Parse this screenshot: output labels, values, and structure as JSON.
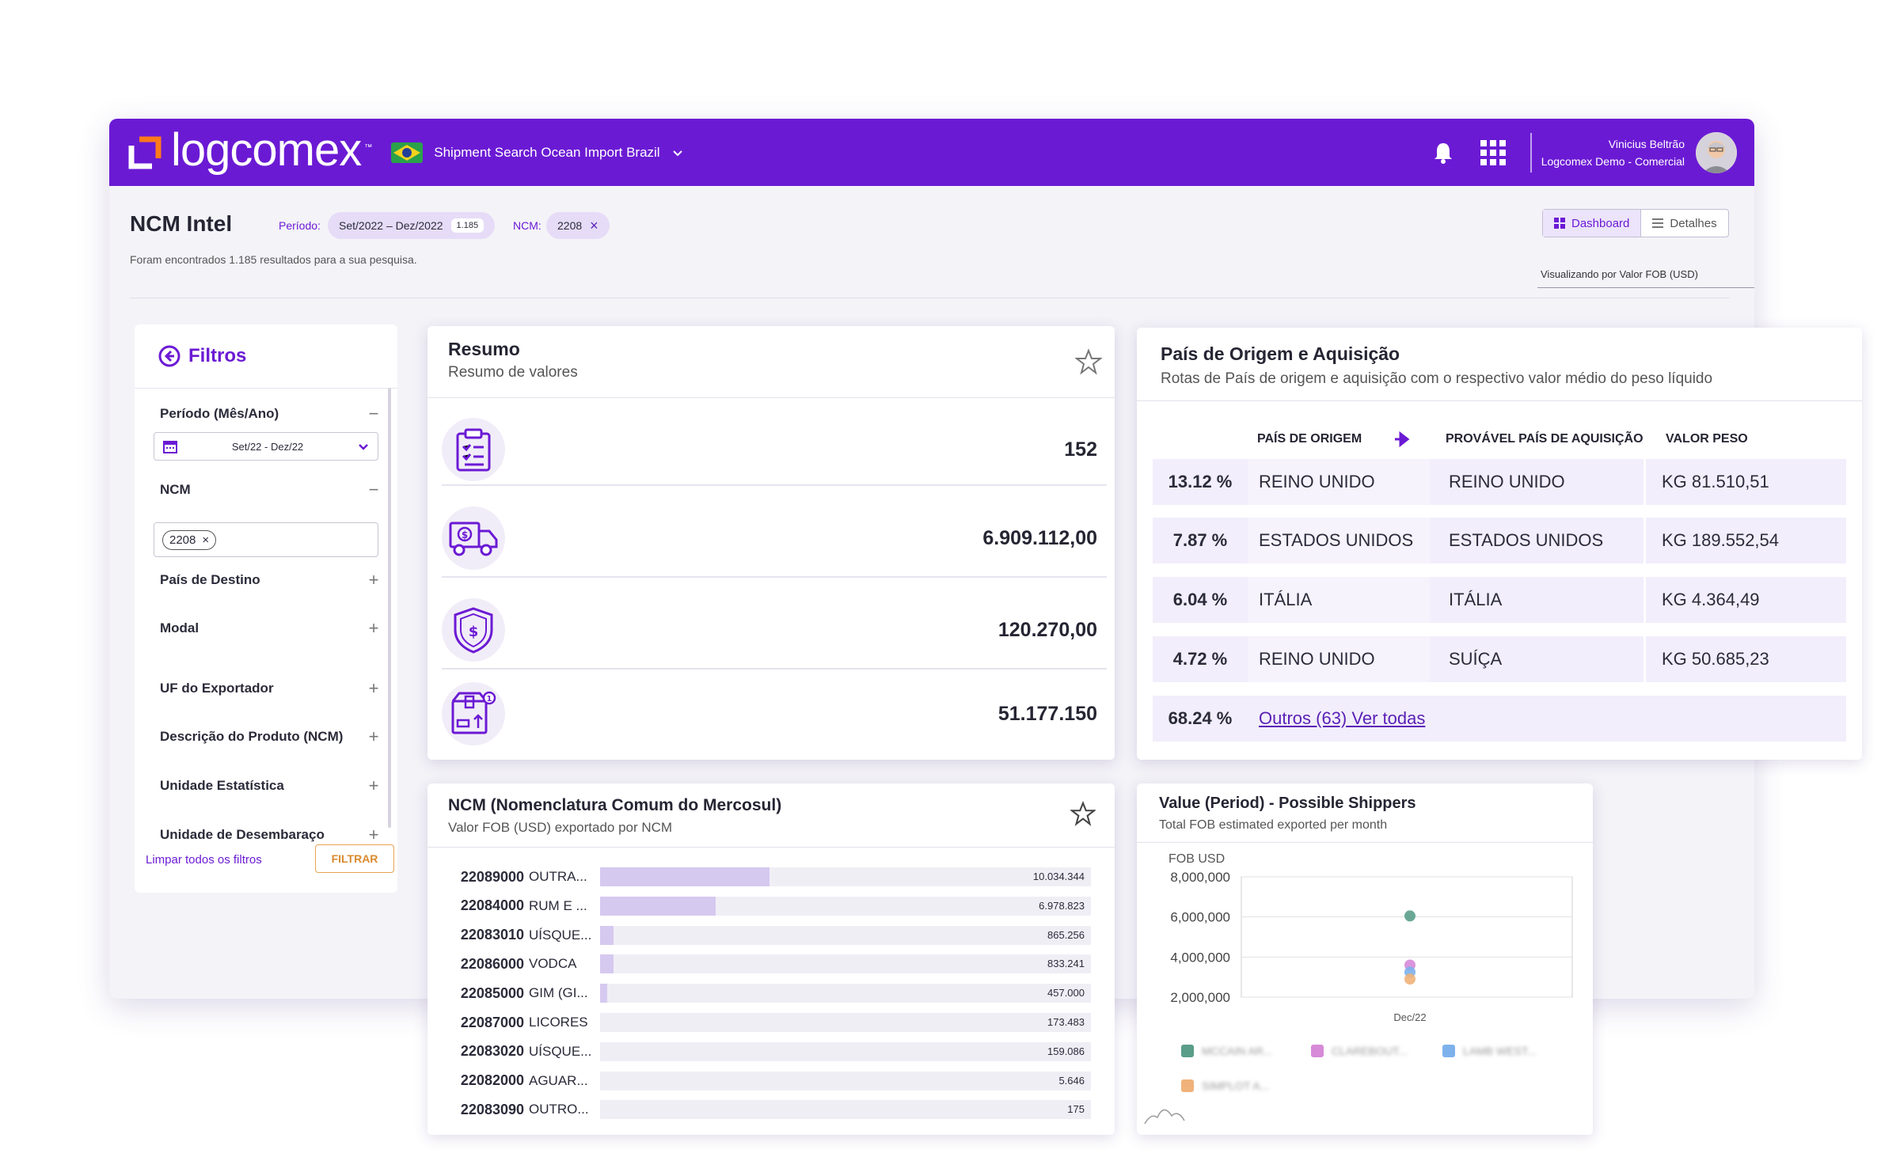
{
  "header": {
    "logo_text": "logcomex",
    "logo_tm": "™",
    "product_name": "Shipment Search Ocean Import Brazil",
    "user_name": "Vinicius Beltrão",
    "user_org": "Logcomex Demo - Comercial"
  },
  "page": {
    "title": "NCM Intel",
    "periodo_label": "Período:",
    "periodo_value": "Set/2022 – Dez/2022",
    "periodo_count": "1.185",
    "ncm_label": "NCM:",
    "ncm_value": "2208",
    "results_text": "Foram encontrados 1.185 resultados para a sua pesquisa.",
    "view_dashboard": "Dashboard",
    "view_detalhes": "Detalhes",
    "visualizando": "Visualizando por Valor FOB (USD)"
  },
  "filters": {
    "title": "Filtros",
    "periodo": "Período (Mês/Ano)",
    "periodo_range": "Set/22 - Dez/22",
    "ncm": "NCM",
    "ncm_tag": "2208",
    "items": [
      "País de Destino",
      "Modal",
      "UF do Exportador",
      "Descrição do Produto (NCM)",
      "Unidade Estatística",
      "Unidade de Desembaraço"
    ],
    "clear": "Limpar todos os filtros",
    "apply": "FILTRAR"
  },
  "resumo": {
    "title": "Resumo",
    "subtitle": "Resumo de valores",
    "rows": [
      {
        "icon": "clipboard-icon",
        "value": "152"
      },
      {
        "icon": "truck-icon",
        "value": "6.909.112,00"
      },
      {
        "icon": "shield-dollar-icon",
        "value": "120.270,00"
      },
      {
        "icon": "box-icon",
        "value": "51.177.150"
      }
    ]
  },
  "pais": {
    "title": "País de Origem e Aquisição",
    "subtitle": "Rotas de País de origem e aquisição com o respectivo valor médio do peso líquido",
    "head_origem": "PAÍS DE ORIGEM",
    "head_aquisicao": "PROVÁVEL PAÍS DE AQUISIÇÃO",
    "head_peso": "VALOR PESO",
    "rows": [
      {
        "pct": "13.12 %",
        "origem": "REINO UNIDO",
        "aquisicao": "REINO UNIDO",
        "peso": "KG 81.510,51"
      },
      {
        "pct": "7.87 %",
        "origem": "ESTADOS UNIDOS",
        "aquisicao": "ESTADOS UNIDOS",
        "peso": "KG 189.552,54"
      },
      {
        "pct": "6.04 %",
        "origem": "ITÁLIA",
        "aquisicao": "ITÁLIA",
        "peso": "KG 4.364,49"
      },
      {
        "pct": "4.72 %",
        "origem": "REINO UNIDO",
        "aquisicao": "SUÍÇA",
        "peso": "KG 50.685,23"
      }
    ],
    "outros_pct": "68.24 %",
    "outros_link": "Outros (63) Ver todas"
  },
  "ncm_card": {
    "title": "NCM (Nomenclatura Comum do Mercosul)",
    "subtitle": "Valor FOB (USD) exportado por NCM",
    "rows": [
      {
        "code": "22089000",
        "name": "OUTRA...",
        "value": "10.034.344",
        "fraction": 0.345
      },
      {
        "code": "22084000",
        "name": "RUM E ...",
        "value": "6.978.823",
        "fraction": 0.235
      },
      {
        "code": "22083010",
        "name": "UÍSQUE...",
        "value": "865.256",
        "fraction": 0.028
      },
      {
        "code": "22086000",
        "name": "VODCA",
        "value": "833.241",
        "fraction": 0.027
      },
      {
        "code": "22085000",
        "name": "GIM (GI...",
        "value": "457.000",
        "fraction": 0.015
      },
      {
        "code": "22087000",
        "name": "LICORES",
        "value": "173.483",
        "fraction": 0.0
      },
      {
        "code": "22083020",
        "name": "UÍSQUE...",
        "value": "159.086",
        "fraction": 0.0
      },
      {
        "code": "22082000",
        "name": "AGUAR...",
        "value": "5.646",
        "fraction": 0.0
      },
      {
        "code": "22083090",
        "name": "OUTRO...",
        "value": "175",
        "fraction": 0.0
      }
    ]
  },
  "shippers": {
    "title": "Value (Period) - Possible Shippers",
    "subtitle": "Total FOB estimated exported per month",
    "colors": [
      "#5a9e8a",
      "#d78ad8",
      "#7db1ec",
      "#f0b27a"
    ],
    "legend": [
      "MCCAIN AR...",
      "CLAREBOUT...",
      "LAMB WEST...",
      "SIMPLOT A..."
    ]
  },
  "chart_data": {
    "type": "scatter",
    "ylabel": "FOB USD",
    "y_ticks": [
      "8,000,000",
      "6,000,000",
      "4,000,000",
      "2,000,000"
    ],
    "ylim": [
      2000000,
      8000000
    ],
    "categories": [
      "Dec/22"
    ],
    "series": [
      {
        "name": "MCCAIN AR...",
        "values": [
          6050000
        ]
      },
      {
        "name": "CLAREBOUT...",
        "values": [
          3600000
        ]
      },
      {
        "name": "LAMB WEST...",
        "values": [
          3250000
        ]
      },
      {
        "name": "SIMPLOT A...",
        "values": [
          2900000
        ]
      }
    ],
    "legend_position": "bottom",
    "grid": true
  }
}
